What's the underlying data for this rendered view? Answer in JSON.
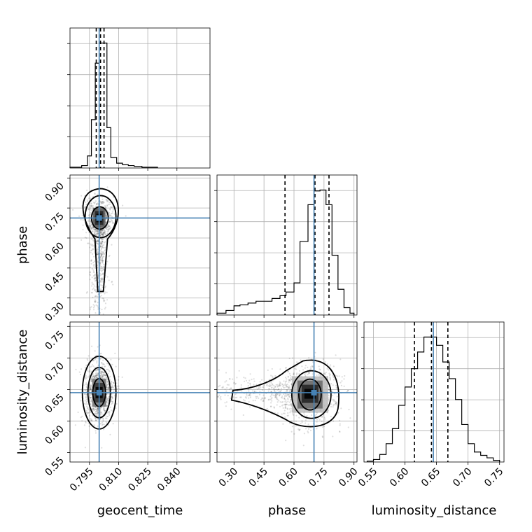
{
  "colors": {
    "truth": "#4682b4",
    "grid": "#b0b0b0",
    "samples": "#000000"
  },
  "chart_data": {
    "type": "corner",
    "parameters": [
      "geocent_time",
      "phase",
      "luminosity_distance"
    ],
    "xlabels": [
      "geocent_time",
      "phase",
      "luminosity_distance"
    ],
    "ylabels": [
      "",
      "phase",
      "luminosity_distance"
    ],
    "grid": true,
    "ranges": {
      "geocent_time": [
        0.785,
        0.857
      ],
      "phase": [
        0.215,
        0.915
      ],
      "luminosity_distance": [
        0.535,
        0.757
      ]
    },
    "ticks": {
      "geocent_time": [
        "0.795",
        "0.810",
        "0.825",
        "0.840"
      ],
      "phase": [
        "0.30",
        "0.45",
        "0.60",
        "0.75",
        "0.90"
      ],
      "luminosity_distance": [
        "0.55",
        "0.60",
        "0.65",
        "0.70",
        "0.75"
      ]
    },
    "truths": {
      "geocent_time": 0.8,
      "phase": 0.7,
      "luminosity_distance": 0.645
    },
    "quantiles": {
      "geocent_time": [
        0.7985,
        0.8007,
        0.8025
      ],
      "phase": [
        0.555,
        0.705,
        0.775
      ],
      "luminosity_distance": [
        0.615,
        0.642,
        0.668
      ]
    },
    "histograms": {
      "geocent_time": {
        "bin_edges": [
          0.785,
          0.791,
          0.794,
          0.796,
          0.798,
          0.8,
          0.802,
          0.804,
          0.806,
          0.809,
          0.812,
          0.815,
          0.818,
          0.822,
          0.826,
          0.83
        ],
        "counts": [
          1,
          3,
          15,
          60,
          130,
          155,
          155,
          50,
          13,
          6,
          4,
          3,
          2,
          1,
          1
        ]
      },
      "phase": {
        "bin_edges": [
          0.215,
          0.26,
          0.3,
          0.33,
          0.37,
          0.41,
          0.45,
          0.49,
          0.53,
          0.56,
          0.6,
          0.63,
          0.67,
          0.7,
          0.73,
          0.76,
          0.79,
          0.82,
          0.85,
          0.88,
          0.9
        ],
        "counts": [
          2,
          5,
          10,
          11,
          13,
          15,
          15,
          18,
          21,
          25,
          35,
          80,
          120,
          135,
          136,
          120,
          65,
          28,
          8,
          2
        ]
      },
      "luminosity_distance": {
        "bin_edges": [
          0.54,
          0.55,
          0.56,
          0.57,
          0.58,
          0.59,
          0.6,
          0.61,
          0.62,
          0.63,
          0.64,
          0.65,
          0.66,
          0.67,
          0.68,
          0.69,
          0.7,
          0.71,
          0.72,
          0.73,
          0.74,
          0.75
        ],
        "counts": [
          1,
          3,
          9,
          22,
          40,
          68,
          90,
          112,
          132,
          150,
          150,
          140,
          120,
          100,
          75,
          45,
          22,
          12,
          8,
          5,
          2
        ]
      }
    },
    "scatter_samples": [
      {
        "x": "geocent_time",
        "y": "phase",
        "center": [
          0.8,
          0.7
        ],
        "spread": [
          0.004,
          0.12
        ]
      },
      {
        "x": "geocent_time",
        "y": "luminosity_distance",
        "center": [
          0.8,
          0.645
        ],
        "spread": [
          0.004,
          0.025
        ]
      },
      {
        "x": "phase",
        "y": "luminosity_distance",
        "center": [
          0.68,
          0.642
        ],
        "spread": [
          0.16,
          0.025
        ]
      }
    ]
  }
}
